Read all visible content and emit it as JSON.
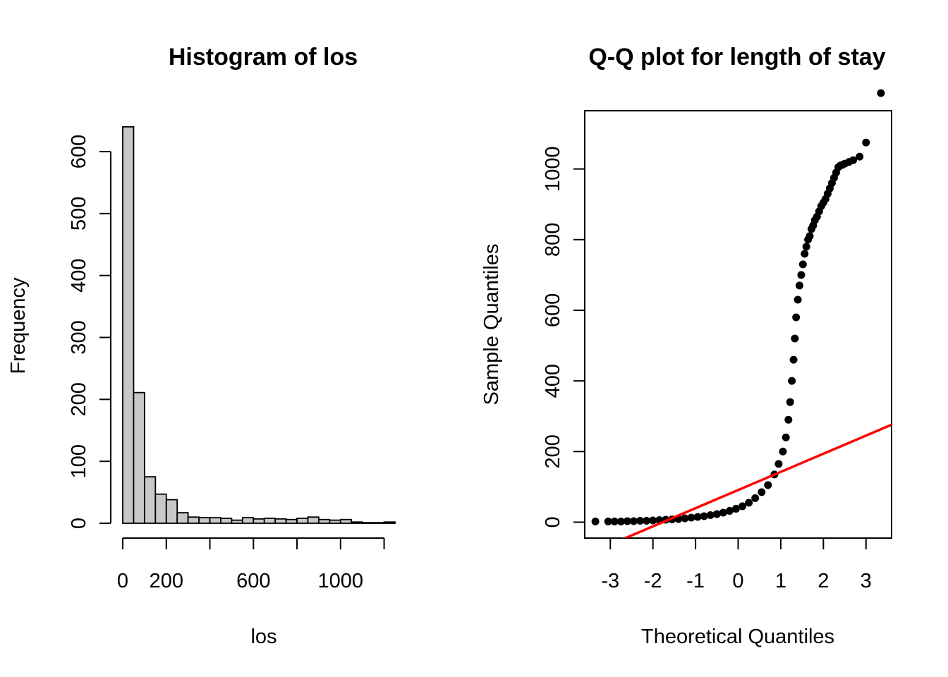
{
  "chart_data": [
    {
      "type": "bar",
      "title": "Histogram of los",
      "xlabel": "los",
      "ylabel": "Frequency",
      "bin_width": 50,
      "bin_start": 0,
      "values": [
        640,
        211,
        75,
        47,
        38,
        17,
        10,
        9,
        9,
        8,
        5,
        9,
        7,
        8,
        7,
        6,
        8,
        10,
        6,
        5,
        6,
        2,
        1,
        1,
        2
      ],
      "xlim": [
        0,
        1250
      ],
      "ylim": [
        0,
        640
      ],
      "x_ticks": [
        0,
        200,
        400,
        600,
        800,
        1000,
        1200
      ],
      "x_tick_labels": [
        "0",
        "200",
        "",
        "600",
        "",
        "1000",
        ""
      ],
      "y_ticks": [
        0,
        100,
        200,
        300,
        400,
        500,
        600
      ],
      "y_tick_labels": [
        "0",
        "100",
        "200",
        "300",
        "400",
        "500",
        "600"
      ],
      "bar_color": "#c8c8c8"
    },
    {
      "type": "scatter",
      "title": "Q-Q plot for length of stay",
      "xlabel": "Theoretical Quantiles",
      "ylabel": "Sample Quantiles",
      "xlim": [
        -3.6,
        3.6
      ],
      "ylim": [
        -45,
        1165
      ],
      "x_ticks": [
        -3,
        -2,
        -1,
        0,
        1,
        2,
        3
      ],
      "x_tick_labels": [
        "-3",
        "-2",
        "-1",
        "0",
        "1",
        "2",
        "3"
      ],
      "y_ticks": [
        0,
        200,
        400,
        600,
        800,
        1000
      ],
      "y_tick_labels": [
        "0",
        "200",
        "400",
        "600",
        "800",
        "1000"
      ],
      "points_x": [
        -3.35,
        -3.05,
        -2.9,
        -2.75,
        -2.6,
        -2.45,
        -2.3,
        -2.15,
        -2.0,
        -1.85,
        -1.7,
        -1.55,
        -1.4,
        -1.25,
        -1.1,
        -0.95,
        -0.8,
        -0.65,
        -0.5,
        -0.35,
        -0.2,
        -0.05,
        0.1,
        0.25,
        0.4,
        0.55,
        0.7,
        0.85,
        0.95,
        1.05,
        1.12,
        1.18,
        1.22,
        1.26,
        1.3,
        1.33,
        1.36,
        1.4,
        1.44,
        1.48,
        1.52,
        1.56,
        1.6,
        1.64,
        1.68,
        1.72,
        1.76,
        1.8,
        1.85,
        1.9,
        1.95,
        2.0,
        2.05,
        2.1,
        2.15,
        2.2,
        2.25,
        2.3,
        2.35,
        2.4,
        2.45,
        2.5,
        2.6,
        2.7,
        2.85,
        3.0,
        3.35
      ],
      "points_y": [
        2,
        2,
        2,
        2,
        3,
        3,
        4,
        4,
        5,
        6,
        7,
        8,
        9,
        11,
        13,
        15,
        17,
        20,
        23,
        27,
        32,
        38,
        45,
        55,
        68,
        85,
        105,
        135,
        165,
        200,
        240,
        290,
        340,
        400,
        460,
        520,
        580,
        630,
        670,
        700,
        730,
        760,
        780,
        800,
        810,
        830,
        840,
        855,
        865,
        880,
        895,
        905,
        915,
        930,
        945,
        960,
        975,
        990,
        1005,
        1010,
        1012,
        1015,
        1020,
        1025,
        1035,
        1075,
        1215
      ],
      "reference_line": {
        "x": [
          -3.6,
          3.6
        ],
        "y": [
          -94,
          276
        ],
        "color": "#ff0000"
      },
      "point_color": "#000000"
    }
  ]
}
